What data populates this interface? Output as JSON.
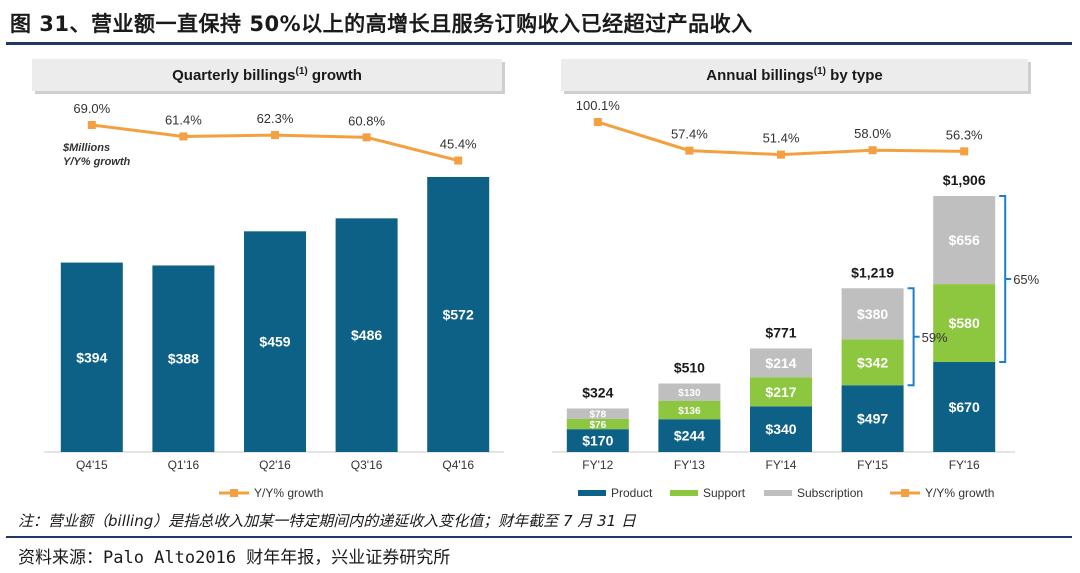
{
  "page": {
    "title": "图 31、营业额一直保持 50%以上的高增长且服务订购收入已经超过产品收入",
    "note": "注：营业额（billing）是指总收入加某一特定期间内的递延收入变化值；财年截至 7 月 31 日",
    "source": "资料来源：Palo Alto2016 财年年报，兴业证券研究所"
  },
  "colors": {
    "bar": "#0e6186",
    "product": "#0e6186",
    "support": "#8dc63f",
    "subscription": "#bfbfbf",
    "growth_line": "#f5a040",
    "title_rule": "#1f3864",
    "brace": "#1b7fd0"
  },
  "chart_data": [
    {
      "type": "bar",
      "title": "Quarterly billings",
      "title_sup": "(1)",
      "title_suffix": " growth",
      "unit_note": [
        "$Millions",
        "Y/Y% growth"
      ],
      "categories": [
        "Q4'15",
        "Q1'16",
        "Q2'16",
        "Q3'16",
        "Q4'16"
      ],
      "series": [
        {
          "values": [
            394,
            388,
            459,
            486,
            572
          ],
          "labels": [
            "$394",
            "$388",
            "$459",
            "$486",
            "$572"
          ]
        }
      ],
      "growth": {
        "name": "Y/Y% growth",
        "values": [
          69.0,
          61.4,
          62.3,
          60.8,
          45.4
        ],
        "labels": [
          "69.0%",
          "61.4%",
          "62.3%",
          "60.8%",
          "45.4%"
        ]
      },
      "legend": [
        "Y/Y% growth"
      ],
      "ylim": [
        0,
        620
      ],
      "grid": false,
      "legend_position": "bottom"
    },
    {
      "type": "bar",
      "stacked": true,
      "title": "Annual billings",
      "title_sup": "(1)",
      "title_suffix": " by type",
      "categories": [
        "FY'12",
        "FY'13",
        "FY'14",
        "FY'15",
        "FY'16"
      ],
      "series": [
        {
          "name": "Product",
          "values": [
            170,
            244,
            340,
            497,
            670
          ],
          "labels": [
            "$170",
            "$244",
            "$340",
            "$497",
            "$670"
          ]
        },
        {
          "name": "Support",
          "values": [
            76,
            136,
            217,
            342,
            580
          ],
          "labels": [
            "$76",
            "$136",
            "$217",
            "$342",
            "$580"
          ]
        },
        {
          "name": "Subscription",
          "values": [
            78,
            130,
            214,
            380,
            656
          ],
          "labels": [
            "$78",
            "$130",
            "$214",
            "$380",
            "$656"
          ]
        }
      ],
      "totals": [
        324,
        510,
        771,
        1219,
        1906
      ],
      "total_labels": [
        "$324",
        "$510",
        "$771",
        "$1,219",
        "$1,906"
      ],
      "growth": {
        "name": "Y/Y% growth",
        "values": [
          100.1,
          57.4,
          51.4,
          58.0,
          56.3
        ],
        "labels": [
          "100.1%",
          "57.4%",
          "51.4%",
          "58.0%",
          "56.3%"
        ]
      },
      "annotations": [
        {
          "category": "FY'15",
          "text": "59%"
        },
        {
          "category": "FY'16",
          "text": "65%"
        }
      ],
      "legend": [
        "Product",
        "Support",
        "Subscription",
        "Y/Y% growth"
      ],
      "ylim": [
        0,
        2020
      ],
      "grid": false,
      "legend_position": "bottom"
    }
  ]
}
